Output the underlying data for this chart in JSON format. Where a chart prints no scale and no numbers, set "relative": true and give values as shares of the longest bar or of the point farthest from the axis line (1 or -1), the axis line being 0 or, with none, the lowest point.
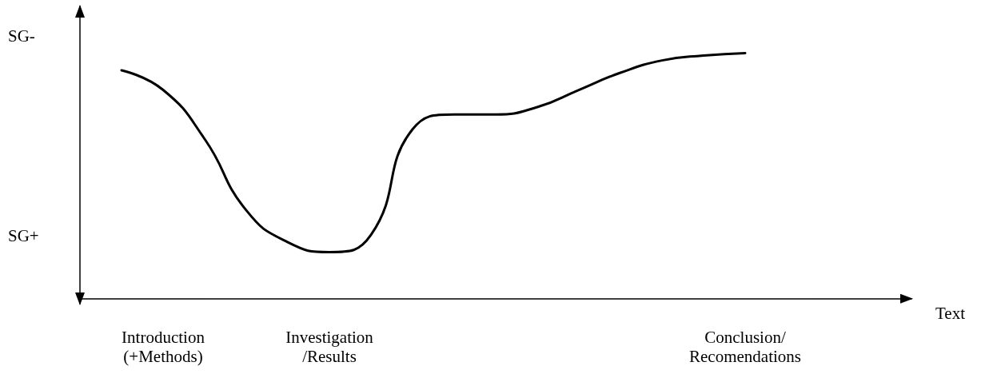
{
  "chart_data": {
    "type": "line",
    "xlabel": "Text",
    "relative": true,
    "annotations": [
      "SG-",
      "SG+"
    ],
    "categories": [
      null,
      null,
      "Introduction\n(+Methods)",
      null,
      null,
      null,
      "Investigation\n/Results",
      null,
      null,
      null,
      null,
      null,
      null,
      null,
      null,
      null,
      "Conclusion/\nRecomendations",
      null,
      null,
      null,
      null
    ],
    "values": [
      null,
      0.93,
      0.85,
      0.65,
      0.36,
      0.23,
      0.19,
      0.26,
      0.69,
      0.75,
      0.75,
      0.78,
      0.85,
      0.92,
      0.97,
      0.99,
      1.0,
      null,
      null,
      null,
      null
    ],
    "color": "#000000",
    "marker": "none",
    "line_style": "solid"
  }
}
